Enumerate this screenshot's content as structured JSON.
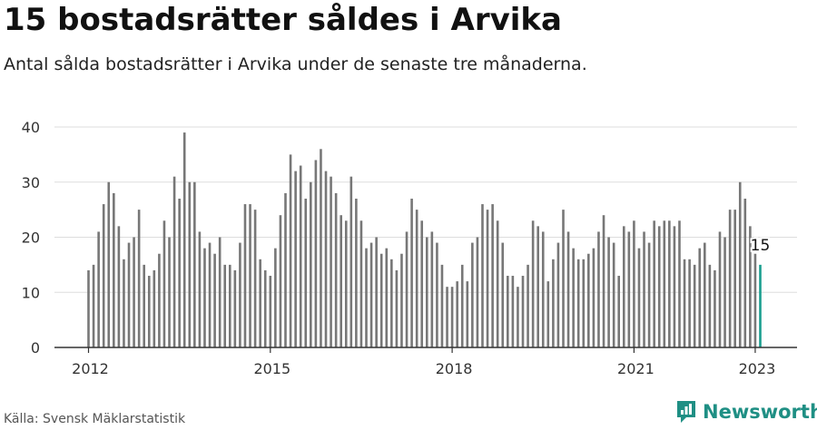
{
  "header": {
    "title": "15 bostadsrätter såldes i Arvika",
    "subtitle": "Antal sålda bostadsrätter i Arvika under de senaste tre månaderna."
  },
  "footer": {
    "source": "Källa: Svensk Mäklarstatistik",
    "brand": "Newsworthy"
  },
  "colors": {
    "bar": "#777777",
    "highlight": "#1a9e8f",
    "grid": "#dddddd",
    "brand": "#1f8f84"
  },
  "chart_data": {
    "type": "bar",
    "title": "15 bostadsrätter såldes i Arvika",
    "subtitle": "Antal sålda bostadsrätter i Arvika under de senaste tre månaderna.",
    "xlabel": "",
    "ylabel": "",
    "ylim": [
      0,
      40
    ],
    "yticks": [
      0,
      10,
      20,
      30,
      40
    ],
    "xticks": [
      "2012",
      "2015",
      "2018",
      "2021",
      "2023"
    ],
    "grid": true,
    "legend": "none",
    "highlight_label": "15",
    "series": [
      {
        "values": [
          14,
          15,
          21,
          26,
          30,
          28,
          22,
          16,
          19,
          20,
          25,
          15,
          13,
          14,
          17,
          23,
          20,
          31,
          27,
          39,
          30,
          30,
          21,
          18,
          19,
          17,
          20,
          15,
          15,
          14,
          19,
          26,
          26,
          25,
          16,
          14,
          13,
          18,
          24,
          28,
          35,
          32,
          33,
          27,
          30,
          34,
          36,
          32,
          31,
          28,
          24,
          23,
          31,
          27,
          23,
          18,
          19,
          20,
          17,
          18,
          16,
          14,
          17,
          21,
          27,
          25,
          23,
          20,
          21,
          19,
          15,
          11,
          11,
          12,
          15,
          12,
          19,
          20,
          26,
          25,
          26,
          23,
          19,
          13,
          13,
          11,
          13,
          15,
          23,
          22,
          21,
          12,
          16,
          19,
          25,
          21,
          18,
          16,
          16,
          17,
          18,
          21,
          24,
          20,
          19,
          13,
          22,
          21,
          23,
          18,
          21,
          19,
          23,
          22,
          23,
          23,
          22,
          23,
          16,
          16,
          15,
          18,
          19,
          15,
          14,
          21,
          20,
          25,
          25,
          30,
          27,
          22,
          17,
          15
        ]
      }
    ]
  }
}
